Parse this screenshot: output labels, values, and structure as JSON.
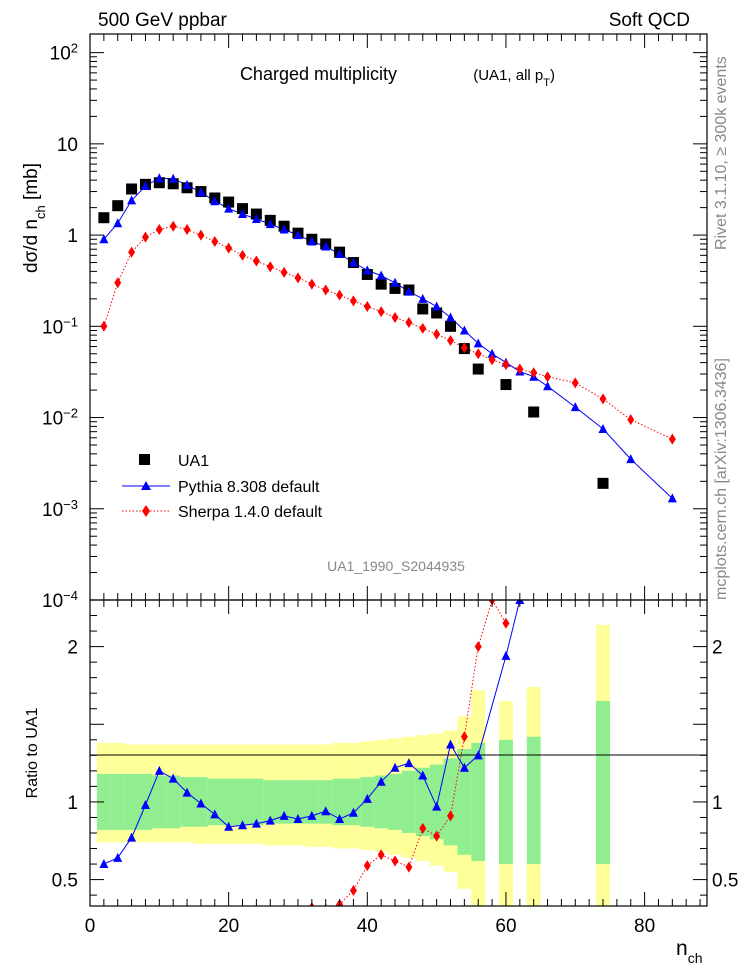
{
  "header": {
    "left": "500 GeV ppbar",
    "right": "Soft QCD"
  },
  "side": {
    "rivet": "Rivet 3.1.10, ≥ 300k events",
    "mcplots": "mcplots.cern.ch [arXiv:1306.3436]"
  },
  "colors": {
    "ua1": "#000000",
    "pythia": "#0000ff",
    "sherpa": "#ff0000",
    "band_inner": "#90ee90",
    "band_outer": "#ffff99"
  },
  "chart_data": [
    {
      "type": "scatter",
      "title": "Charged multiplicity",
      "subtitle": "(UA1, all p_T)",
      "ylabel": "dσ/d n_ch [mb]",
      "xlabel": "n_ch",
      "yscale": "log",
      "xlim": [
        0,
        89
      ],
      "ylim": [
        0.0001,
        160
      ],
      "analysis_tag": "UA1_1990_S2044935",
      "y_ticks": [
        {
          "v": 100,
          "base": "10",
          "exp": "2"
        },
        {
          "v": 10,
          "base": "10",
          "exp": ""
        },
        {
          "v": 1,
          "base": "1",
          "exp": ""
        },
        {
          "v": 0.1,
          "base": "10",
          "exp": "−1"
        },
        {
          "v": 0.01,
          "base": "10",
          "exp": "−2"
        },
        {
          "v": 0.001,
          "base": "10",
          "exp": "−3"
        },
        {
          "v": 0.0001,
          "base": "10",
          "exp": "−4"
        }
      ],
      "legend": [
        "UA1",
        "Pythia 8.308 default",
        "Sherpa 1.4.0 default"
      ],
      "series": [
        {
          "name": "UA1",
          "marker": "square",
          "x": [
            2,
            4,
            6,
            8,
            10,
            12,
            14,
            16,
            18,
            20,
            22,
            24,
            26,
            28,
            30,
            32,
            34,
            36,
            38,
            40,
            42,
            44,
            46,
            48,
            50,
            52,
            54,
            56,
            60,
            64,
            74
          ],
          "y": [
            1.55,
            2.1,
            3.2,
            3.6,
            3.75,
            3.65,
            3.3,
            3.0,
            2.55,
            2.3,
            1.95,
            1.7,
            1.45,
            1.25,
            1.05,
            0.9,
            0.8,
            0.65,
            0.5,
            0.37,
            0.29,
            0.26,
            0.25,
            0.155,
            0.14,
            0.1,
            0.057,
            0.034,
            0.023,
            0.0115,
            0.0019
          ]
        },
        {
          "name": "Pythia 8.308 default",
          "marker": "triangle",
          "x": [
            2,
            4,
            6,
            8,
            10,
            12,
            14,
            16,
            18,
            20,
            22,
            24,
            26,
            28,
            30,
            32,
            34,
            36,
            38,
            40,
            42,
            44,
            46,
            48,
            50,
            52,
            54,
            56,
            58,
            60,
            62,
            64,
            66,
            70,
            74,
            78,
            84
          ],
          "y": [
            0.9,
            1.35,
            2.4,
            3.45,
            4.2,
            4.15,
            3.55,
            2.95,
            2.35,
            1.95,
            1.7,
            1.5,
            1.32,
            1.15,
            1.0,
            0.85,
            0.75,
            0.62,
            0.5,
            0.41,
            0.36,
            0.3,
            0.24,
            0.2,
            0.165,
            0.125,
            0.09,
            0.065,
            0.05,
            0.04,
            0.032,
            0.028,
            0.022,
            0.013,
            0.0075,
            0.0035,
            0.0013
          ]
        },
        {
          "name": "Sherpa 1.4.0 default",
          "marker": "diamond",
          "x": [
            2,
            4,
            6,
            8,
            10,
            12,
            14,
            16,
            18,
            20,
            22,
            24,
            26,
            28,
            30,
            32,
            34,
            36,
            38,
            40,
            42,
            44,
            46,
            48,
            50,
            52,
            54,
            56,
            58,
            60,
            62,
            64,
            66,
            70,
            74,
            78,
            84
          ],
          "y": [
            0.1,
            0.3,
            0.65,
            0.95,
            1.15,
            1.25,
            1.15,
            1.0,
            0.85,
            0.72,
            0.6,
            0.52,
            0.45,
            0.39,
            0.34,
            0.29,
            0.25,
            0.22,
            0.19,
            0.165,
            0.145,
            0.125,
            0.11,
            0.095,
            0.082,
            0.07,
            0.058,
            0.05,
            0.043,
            0.038,
            0.034,
            0.031,
            0.028,
            0.024,
            0.016,
            0.0095,
            0.0058
          ]
        }
      ]
    },
    {
      "type": "line",
      "ylabel": "Ratio to UA1",
      "xlabel": "n_ch",
      "xlim": [
        0,
        89
      ],
      "ylim": [
        0.33,
        2.3
      ],
      "x_ticks": [
        0,
        20,
        40,
        60,
        80
      ],
      "y_ticks": [
        "0.5",
        "1",
        "2"
      ],
      "reference": 1,
      "bands": {
        "x": [
          2,
          4,
          6,
          8,
          10,
          12,
          14,
          16,
          18,
          20,
          22,
          24,
          26,
          28,
          30,
          32,
          34,
          36,
          38,
          40,
          42,
          44,
          46,
          48,
          50,
          52,
          54,
          56,
          60,
          64,
          74
        ],
        "inner_lo": [
          0.82,
          0.82,
          0.82,
          0.82,
          0.83,
          0.83,
          0.84,
          0.84,
          0.85,
          0.85,
          0.85,
          0.85,
          0.86,
          0.86,
          0.86,
          0.86,
          0.86,
          0.85,
          0.85,
          0.84,
          0.83,
          0.82,
          0.8,
          0.78,
          0.76,
          0.72,
          0.66,
          0.62,
          0.6,
          0.6,
          0.6
        ],
        "inner_hi": [
          1.18,
          1.18,
          1.18,
          1.18,
          1.17,
          1.17,
          1.16,
          1.16,
          1.15,
          1.15,
          1.15,
          1.15,
          1.14,
          1.14,
          1.14,
          1.14,
          1.14,
          1.15,
          1.15,
          1.16,
          1.17,
          1.18,
          1.2,
          1.22,
          1.24,
          1.28,
          1.34,
          1.38,
          1.4,
          1.42,
          1.65
        ],
        "outer_lo": [
          0.74,
          0.74,
          0.74,
          0.74,
          0.74,
          0.74,
          0.74,
          0.73,
          0.73,
          0.73,
          0.73,
          0.73,
          0.72,
          0.72,
          0.72,
          0.71,
          0.71,
          0.7,
          0.7,
          0.69,
          0.68,
          0.66,
          0.64,
          0.62,
          0.59,
          0.55,
          0.44,
          0.33,
          0.33,
          0.33,
          0.33
        ],
        "outer_hi": [
          1.38,
          1.38,
          1.37,
          1.37,
          1.37,
          1.37,
          1.37,
          1.37,
          1.37,
          1.37,
          1.37,
          1.37,
          1.37,
          1.37,
          1.37,
          1.37,
          1.37,
          1.38,
          1.38,
          1.39,
          1.4,
          1.41,
          1.42,
          1.43,
          1.44,
          1.46,
          1.55,
          1.72,
          1.65,
          1.74,
          2.14
        ]
      },
      "series": [
        {
          "name": "Pythia 8.308 default",
          "marker": "triangle",
          "x": [
            2,
            4,
            6,
            8,
            10,
            12,
            14,
            16,
            18,
            20,
            22,
            24,
            26,
            28,
            30,
            32,
            34,
            36,
            38,
            40,
            42,
            44,
            46,
            48,
            50,
            52,
            54,
            56,
            60,
            62
          ],
          "y": [
            0.6,
            0.64,
            0.77,
            0.98,
            1.2,
            1.15,
            1.06,
            0.99,
            0.92,
            0.84,
            0.85,
            0.86,
            0.88,
            0.91,
            0.89,
            0.91,
            0.94,
            0.89,
            0.93,
            1.02,
            1.13,
            1.22,
            1.25,
            1.17,
            0.97,
            1.37,
            1.22,
            1.3,
            1.94,
            2.3
          ]
        },
        {
          "name": "Sherpa 1.4.0 default",
          "marker": "diamond",
          "x": [
            32,
            34,
            36,
            38,
            40,
            42,
            44,
            46,
            48,
            50,
            52,
            54,
            56,
            58,
            60
          ],
          "y": [
            0.32,
            0.31,
            0.34,
            0.43,
            0.59,
            0.66,
            0.62,
            0.58,
            0.83,
            0.78,
            0.91,
            1.42,
            2.0,
            2.3,
            2.15
          ]
        }
      ]
    }
  ]
}
